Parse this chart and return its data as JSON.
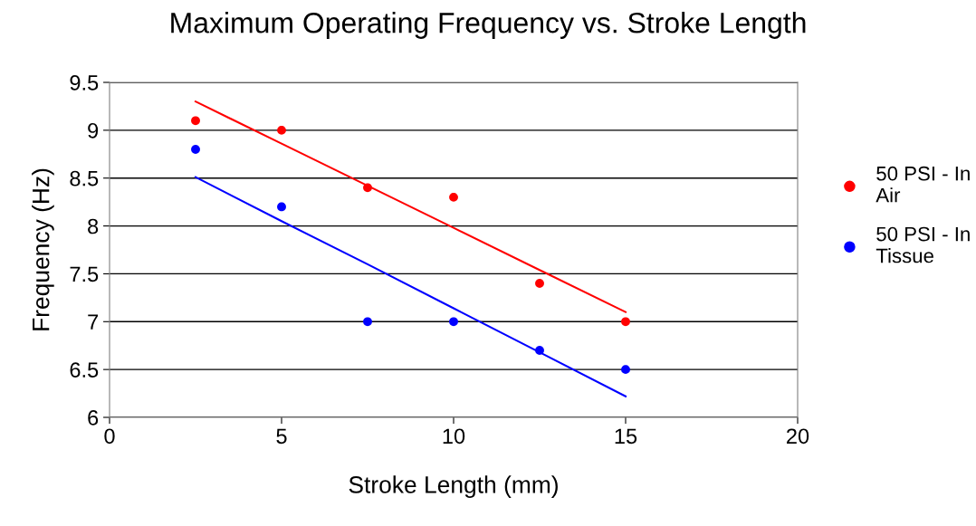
{
  "chart_data": {
    "type": "scatter",
    "title": "Maximum Operating Frequency vs. Stroke Length",
    "xlabel": "Stroke Length (mm)",
    "ylabel": "Frequency (Hz)",
    "x": [
      2.5,
      5,
      7.5,
      10,
      12.5,
      15
    ],
    "series": [
      {
        "name": "50 PSI - In\nAir",
        "color": "#ff0000",
        "values": [
          9.1,
          9.0,
          8.4,
          8.3,
          7.4,
          7.0
        ]
      },
      {
        "name": "50 PSI - In\nTissue",
        "color": "#0000ff",
        "values": [
          8.8,
          8.2,
          7.0,
          7.0,
          6.7,
          6.5
        ]
      },
      {
        "type": "line",
        "color": "#ff0000",
        "marker": "none",
        "values": [
          9.3,
          8.86,
          8.42,
          7.98,
          7.54,
          7.1
        ]
      },
      {
        "type": "line",
        "color": "#0000ff",
        "marker": "none",
        "values": [
          8.51,
          8.05,
          7.6,
          7.14,
          6.68,
          6.22
        ]
      }
    ],
    "xlim": [
      0,
      20
    ],
    "xticks": [
      0,
      5,
      10,
      15,
      20
    ],
    "ylim": [
      6,
      9.5
    ],
    "yticks": [
      6,
      6.5,
      7,
      7.5,
      8,
      8.5,
      9,
      9.5
    ],
    "grid": "y",
    "legend": "right",
    "marker": "circle",
    "line_style": "solid"
  }
}
